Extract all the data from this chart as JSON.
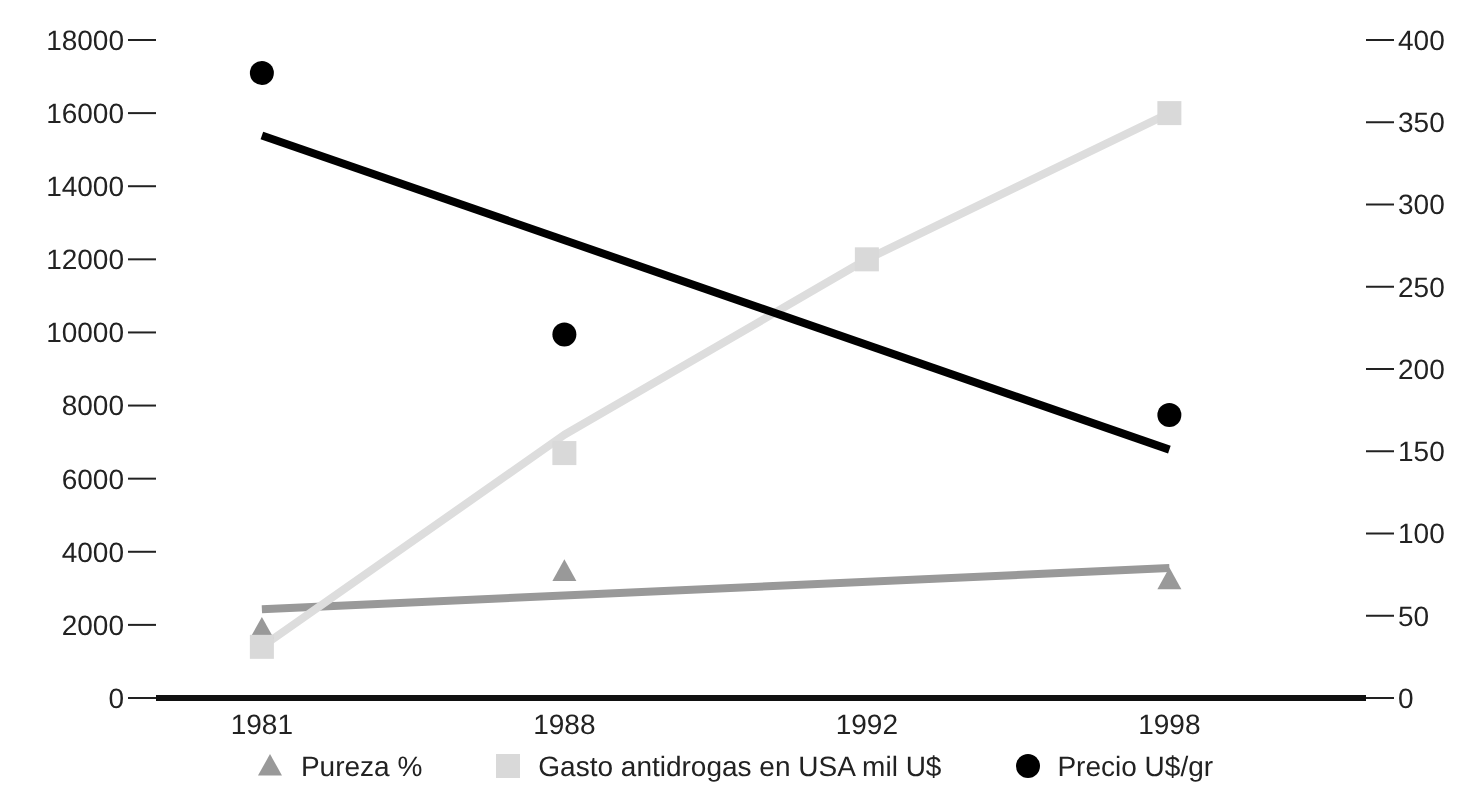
{
  "chart_data": {
    "type": "scatter",
    "categories": [
      "1981",
      "1988",
      "1992",
      "1998"
    ],
    "ylim": [
      0,
      18000
    ],
    "yticks": [
      0,
      2000,
      4000,
      6000,
      8000,
      10000,
      12000,
      14000,
      16000,
      18000
    ],
    "y2lim": [
      0,
      400
    ],
    "y2ticks": [
      0,
      50,
      100,
      150,
      200,
      250,
      300,
      350,
      400
    ],
    "legend": "bottom",
    "grid": false,
    "series": [
      {
        "name": "Pureza %",
        "marker": "triangle",
        "axis": "y2",
        "color": "#999999",
        "values": [
          42,
          77,
          null,
          72
        ]
      },
      {
        "name": "Gasto antidrogas en USA mil U$",
        "marker": "square",
        "color": "#d9d9d9",
        "values": [
          1400,
          6700,
          12000,
          16000
        ]
      },
      {
        "name": "Precio U$/gr",
        "marker": "circle",
        "axis": "y2",
        "color": "#000000",
        "values": [
          380,
          221,
          null,
          172
        ]
      },
      {
        "type": "line",
        "axis": "y2",
        "color": "#999999",
        "values": [
          54,
          null,
          null,
          79
        ]
      },
      {
        "type": "line",
        "color": "#dddddd",
        "values": [
          1400,
          7200,
          12000,
          16000
        ]
      },
      {
        "type": "line",
        "axis": "y2",
        "color": "#000000",
        "values": [
          342,
          null,
          null,
          151
        ]
      }
    ]
  }
}
